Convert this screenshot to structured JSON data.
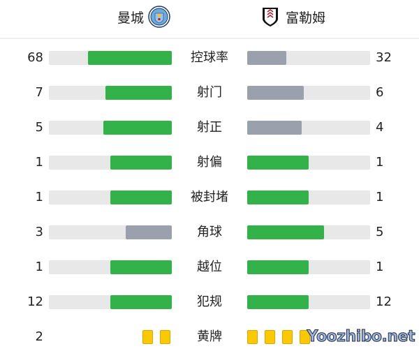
{
  "home": {
    "name": "曼城",
    "crest": "man-city-crest"
  },
  "away": {
    "name": "富勒姆",
    "crest": "fulham-crest"
  },
  "colors": {
    "leader": "#33b24a",
    "trailer": "#9aa0ac",
    "track": "#e8e8e8",
    "yellow_card": "#fcc800"
  },
  "stats": [
    {
      "label": "控球率",
      "home": "68",
      "away": "32"
    },
    {
      "label": "射门",
      "home": "7",
      "away": "6"
    },
    {
      "label": "射正",
      "home": "5",
      "away": "4"
    },
    {
      "label": "射偏",
      "home": "1",
      "away": "1"
    },
    {
      "label": "被封堵",
      "home": "1",
      "away": "1"
    },
    {
      "label": "角球",
      "home": "3",
      "away": "5"
    },
    {
      "label": "越位",
      "home": "1",
      "away": "1"
    },
    {
      "label": "犯规",
      "home": "12",
      "away": "12"
    }
  ],
  "yellow_cards": {
    "label": "黄牌",
    "home": "2",
    "home_count": 2,
    "away_count": 4
  },
  "watermark": "Yoozhibo.net"
}
